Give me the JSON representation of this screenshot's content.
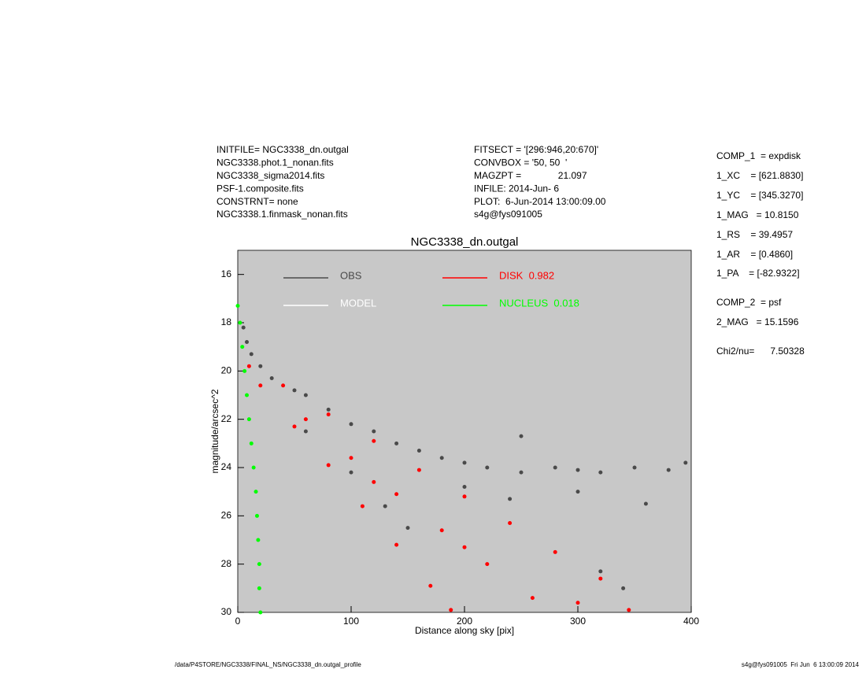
{
  "header": {
    "left": [
      "INITFILE= NGC3338_dn.outgal",
      "NGC3338.phot.1_nonan.fits",
      "NGC3338_sigma2014.fits",
      "PSF-1.composite.fits",
      "CONSTRNT= none",
      "NGC3338.1.finmask_nonan.fits"
    ],
    "middle": [
      "FITSECT = '[296:946,20:670]'",
      "CONVBOX = '50, 50  '",
      "MAGZPT =              21.097",
      "INFILE: 2014-Jun- 6",
      "PLOT:  6-Jun-2014 13:00:09.00",
      "s4g@fys091005"
    ],
    "right": [
      "COMP_1  = expdisk",
      "1_XC    = [621.8830]",
      "1_YC    = [345.3270]",
      "1_MAG   = 10.8150",
      "1_RS    = 39.4957",
      "1_AR    = [0.4860]",
      "1_PA    = [-82.9322]",
      "COMP_2  = psf",
      "2_MAG   = 15.1596",
      "Chi2/nu=      7.50328"
    ]
  },
  "footer": {
    "left": "/data/P4STORE/NGC3338/FINAL_NS/NGC3338_dn.outgal_profile",
    "right": "s4g@fys091005  Fri Jun  6 13:00:09 2014"
  },
  "chart_data": {
    "type": "scatter",
    "title": "NGC3338_dn.outgal",
    "x_label": "Distance along sky [pix]",
    "y_label": "magnitude/arcsec^2",
    "xlim": [
      0,
      400
    ],
    "xticks": [
      0,
      100,
      200,
      300,
      400
    ],
    "ylim": [
      15,
      30
    ],
    "yticks": [
      16,
      18,
      20,
      22,
      24,
      26,
      28,
      30
    ],
    "y_inverted": true,
    "background": "#c8c8c8",
    "series": [
      {
        "name": "OBS",
        "color": "#4a4a4a",
        "x": [
          5,
          8,
          12,
          20,
          30,
          50,
          60,
          80,
          100,
          120,
          140,
          160,
          180,
          200,
          220,
          250,
          280,
          300,
          320,
          350,
          380,
          395,
          60,
          100,
          130,
          150,
          320,
          340,
          250,
          300,
          360,
          200,
          240
        ],
        "values": [
          18.2,
          18.8,
          19.3,
          19.8,
          20.3,
          20.8,
          21.0,
          21.6,
          22.2,
          22.5,
          23.0,
          23.3,
          23.6,
          23.8,
          24.0,
          24.2,
          24.0,
          24.1,
          24.2,
          24.0,
          24.1,
          23.8,
          22.5,
          24.2,
          25.6,
          26.5,
          28.3,
          29.0,
          22.7,
          25.0,
          25.5,
          24.8,
          25.3
        ]
      },
      {
        "name": "MODEL",
        "color": "#ffffff",
        "x": [],
        "values": []
      },
      {
        "name": "DISK  0.982",
        "color": "#ff0000",
        "x": [
          10,
          40,
          80,
          120,
          160,
          200,
          240,
          280,
          320,
          345,
          20,
          50,
          80,
          110,
          140,
          170,
          188,
          60,
          100,
          140,
          180,
          220,
          260,
          120,
          200,
          300
        ],
        "values": [
          19.8,
          20.6,
          21.8,
          22.9,
          24.1,
          25.2,
          26.3,
          27.5,
          28.6,
          29.9,
          20.6,
          22.3,
          23.9,
          25.6,
          27.2,
          28.9,
          29.9,
          22.0,
          23.6,
          25.1,
          26.6,
          28.0,
          29.4,
          24.6,
          27.3,
          29.6
        ]
      },
      {
        "name": "NUCLEUS  0.018",
        "color": "#00ff00",
        "x": [
          0,
          2,
          4,
          6,
          8,
          10,
          12,
          14,
          16,
          17,
          18,
          19,
          19,
          20
        ],
        "values": [
          17.3,
          18,
          19,
          20,
          21,
          22,
          23,
          24,
          25,
          26,
          27,
          28,
          29,
          30
        ]
      }
    ]
  }
}
